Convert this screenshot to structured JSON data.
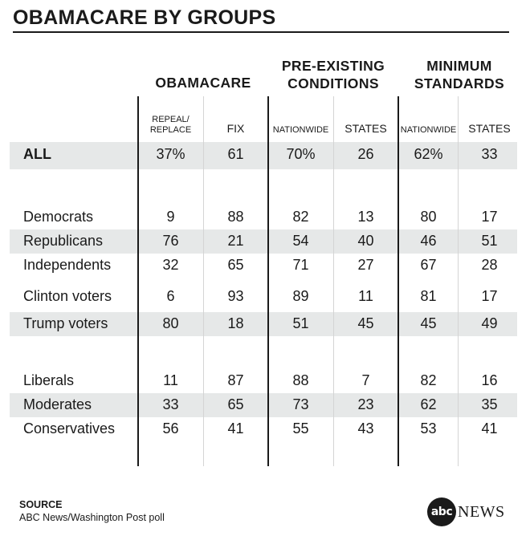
{
  "title": "OBAMACARE BY GROUPS",
  "groups": [
    {
      "label": "OBAMACARE"
    },
    {
      "label": "PRE-EXISTING\nCONDITIONS"
    },
    {
      "label": "MINIMUM\nSTANDARDS"
    }
  ],
  "columns": [
    "REPEAL/\nREPLACE",
    "FIX",
    "NATIONWIDE",
    "STATES",
    "NATIONWIDE",
    "STATES"
  ],
  "chart_data": {
    "type": "table",
    "title": "OBAMACARE BY GROUPS",
    "column_groups": [
      {
        "name": "OBAMACARE",
        "columns": [
          "REPEAL/REPLACE",
          "FIX"
        ]
      },
      {
        "name": "PRE-EXISTING CONDITIONS",
        "columns": [
          "NATIONWIDE",
          "STATES"
        ]
      },
      {
        "name": "MINIMUM STANDARDS",
        "columns": [
          "NATIONWIDE",
          "STATES"
        ]
      }
    ],
    "rows": [
      {
        "label": "ALL",
        "values": [
          "37%",
          "61",
          "70%",
          "26",
          "62%",
          "33"
        ]
      },
      {
        "label": "Democrats",
        "values": [
          "9",
          "88",
          "82",
          "13",
          "80",
          "17"
        ]
      },
      {
        "label": "Republicans",
        "values": [
          "76",
          "21",
          "54",
          "40",
          "46",
          "51"
        ]
      },
      {
        "label": "Independents",
        "values": [
          "32",
          "65",
          "71",
          "27",
          "67",
          "28"
        ]
      },
      {
        "label": "Clinton voters",
        "values": [
          "6",
          "93",
          "89",
          "11",
          "81",
          "17"
        ]
      },
      {
        "label": "Trump voters",
        "values": [
          "80",
          "18",
          "51",
          "45",
          "45",
          "49"
        ]
      },
      {
        "label": "Liberals",
        "values": [
          "11",
          "87",
          "88",
          "7",
          "82",
          "16"
        ]
      },
      {
        "label": "Moderates",
        "values": [
          "33",
          "65",
          "73",
          "23",
          "62",
          "35"
        ]
      },
      {
        "label": "Conservatives",
        "values": [
          "56",
          "41",
          "55",
          "43",
          "53",
          "41"
        ]
      }
    ]
  },
  "source": {
    "heading": "SOURCE",
    "text": "ABC News/Washington Post poll"
  },
  "logo": {
    "mark": "abc",
    "word": "NEWS"
  },
  "colors": {
    "band": "#e6e8e8",
    "text": "#1a1a1a",
    "rule": "#1a1a1a"
  }
}
